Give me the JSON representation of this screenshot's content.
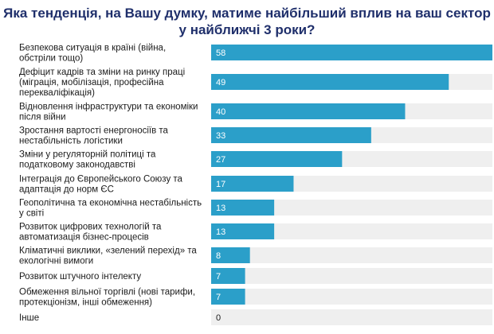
{
  "chart_data": {
    "type": "bar",
    "orientation": "horizontal",
    "title": "Яка тенденція, на Вашу думку, матиме найбільший вплив на ваш сектор у найближчі 3 роки?",
    "categories": [
      "Безпекова ситуація в країні (війна, обстріли тощо)",
      "Дефіцит кадрів та зміни на ринку праці (міграція, мобілізація, професійна перекваліфікація)",
      "Відновлення інфраструктури та економіки після війни",
      "Зростання вартості енергоносіїв та нестабільність логістики",
      "Зміни у регуляторній політиці та податковому законодавстві",
      "Інтеграція до Європейського Союзу та адаптація до норм ЄС",
      "Геополітична та економічна нестабільність у світі",
      "Розвиток цифрових технологій та автоматизація бізнес-процесів",
      "Кліматичні виклики, «зелений перехід» та екологічні вимоги",
      "Розвиток штучного інтелекту",
      "Обмеження вільної торгівлі (нові тарифи, протекціонізм, інші обмеження)",
      "Інше"
    ],
    "values": [
      58,
      49,
      40,
      33,
      27,
      17,
      13,
      13,
      8,
      7,
      7,
      0
    ],
    "xlim": [
      0,
      58
    ],
    "bar_color": "#2b9fc9",
    "track_color": "#efefef",
    "grid": false,
    "legend": "none"
  }
}
